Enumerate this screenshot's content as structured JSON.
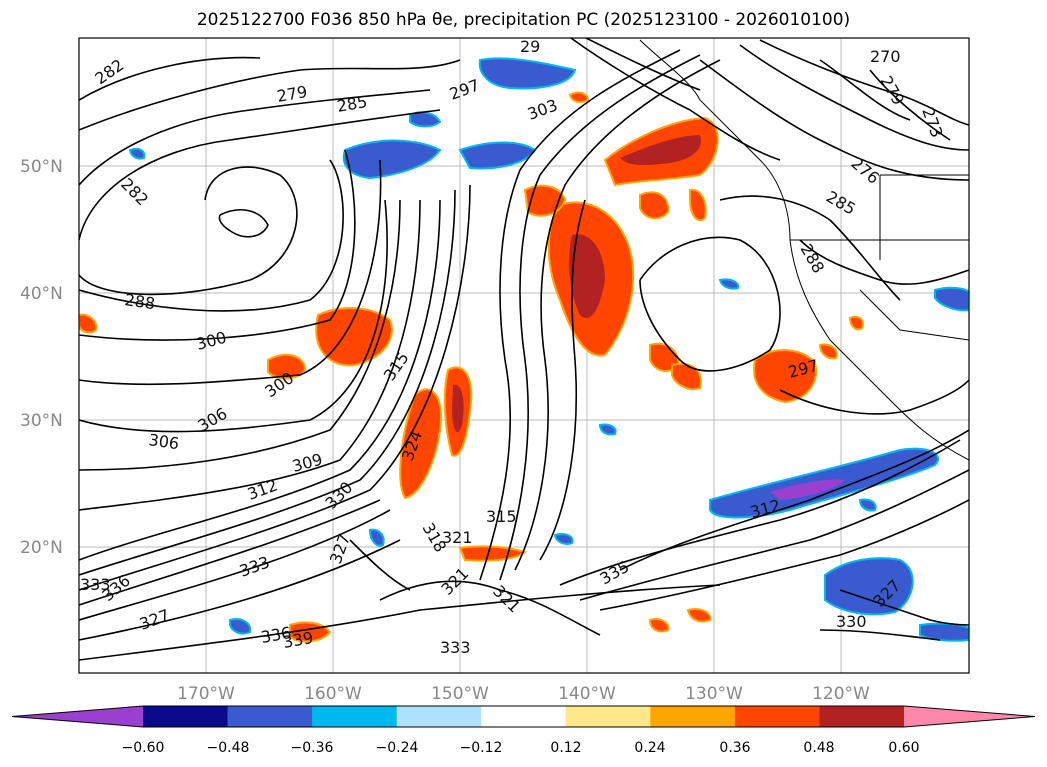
{
  "title": "2025122700 F036 850 hPa θe, precipitation PC (2025123100 - 2026010100)",
  "longitude_labels": [
    "170°W",
    "160°W",
    "150°W",
    "140°W",
    "130°W",
    "120°W"
  ],
  "latitude_labels": [
    "50°N",
    "40°N",
    "30°N",
    "20°N"
  ],
  "colorbar": {
    "ticks": [
      "−0.60",
      "−0.48",
      "−0.36",
      "−0.24",
      "−0.12",
      "0.12",
      "0.24",
      "0.36",
      "0.48",
      "0.60"
    ],
    "colors": [
      "#9b3fd0",
      "#0a0a8c",
      "#3a5bd0",
      "#00b8f0",
      "#aee2ff",
      "#ffffff",
      "#ffe88a",
      "#ffa500",
      "#ff4500",
      "#b22222",
      "#ff88aa"
    ]
  },
  "contour_labels": [
    {
      "id": "l282a",
      "text": "282"
    },
    {
      "id": "l282b",
      "text": "282"
    },
    {
      "id": "l279",
      "text": "279"
    },
    {
      "id": "l285a",
      "text": "285"
    },
    {
      "id": "l297a",
      "text": "297"
    },
    {
      "id": "l303",
      "text": "303"
    },
    {
      "id": "l29",
      "text": "29"
    },
    {
      "id": "l288",
      "text": "288"
    },
    {
      "id": "l300a",
      "text": "300"
    },
    {
      "id": "l300b",
      "text": "300"
    },
    {
      "id": "l306a",
      "text": "306"
    },
    {
      "id": "l306b",
      "text": "306"
    },
    {
      "id": "l309",
      "text": "309"
    },
    {
      "id": "l312",
      "text": "312"
    },
    {
      "id": "l315a",
      "text": "315"
    },
    {
      "id": "l315b",
      "text": "315"
    },
    {
      "id": "l318",
      "text": "318"
    },
    {
      "id": "l321a",
      "text": "321"
    },
    {
      "id": "l321b",
      "text": "321"
    },
    {
      "id": "l321c",
      "text": "321"
    },
    {
      "id": "l324",
      "text": "324"
    },
    {
      "id": "l327a",
      "text": "327"
    },
    {
      "id": "l327b",
      "text": "327"
    },
    {
      "id": "l330a",
      "text": "330"
    },
    {
      "id": "l330b",
      "text": "330"
    },
    {
      "id": "l333a",
      "text": "333"
    },
    {
      "id": "l333b",
      "text": "333"
    },
    {
      "id": "l333c",
      "text": "333"
    },
    {
      "id": "l336a",
      "text": "336"
    },
    {
      "id": "l336b",
      "text": "336"
    },
    {
      "id": "l339",
      "text": "339"
    },
    {
      "id": "l297b",
      "text": "297"
    },
    {
      "id": "l285b",
      "text": "285"
    },
    {
      "id": "l288b",
      "text": "288"
    },
    {
      "id": "l273",
      "text": "273"
    },
    {
      "id": "l279b",
      "text": "279"
    },
    {
      "id": "l270",
      "text": "270"
    },
    {
      "id": "l276",
      "text": "276"
    },
    {
      "id": "l312b",
      "text": "312"
    },
    {
      "id": "l327c",
      "text": "327"
    },
    {
      "id": "l335",
      "text": "335"
    }
  ]
}
